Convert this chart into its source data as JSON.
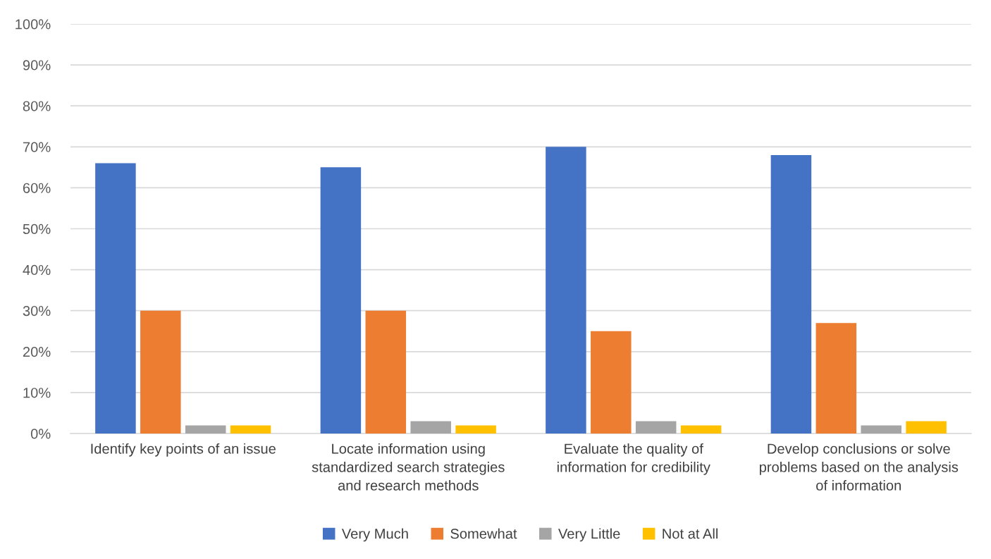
{
  "chart_data": {
    "type": "bar",
    "categories": [
      "Identify key points of an issue",
      "Locate information using standardized search strategies and research methods",
      "Evaluate the quality of information for credibility",
      "Develop conclusions or solve problems based on the analysis of information"
    ],
    "series": [
      {
        "name": "Very Much",
        "color": "#4472c4",
        "values": [
          66,
          65,
          70,
          68
        ]
      },
      {
        "name": "Somewhat",
        "color": "#ed7d31",
        "values": [
          30,
          30,
          25,
          27
        ]
      },
      {
        "name": "Very Little",
        "color": "#a5a5a5",
        "values": [
          2,
          3,
          3,
          2
        ]
      },
      {
        "name": "Not at All",
        "color": "#ffc000",
        "values": [
          2,
          2,
          2,
          3
        ]
      }
    ],
    "ylim": [
      0,
      100
    ],
    "yticks": [
      {
        "value": 0,
        "label": "0%"
      },
      {
        "value": 10,
        "label": "10%"
      },
      {
        "value": 20,
        "label": "20%"
      },
      {
        "value": 30,
        "label": "30%"
      },
      {
        "value": 40,
        "label": "40%"
      },
      {
        "value": 50,
        "label": "50%"
      },
      {
        "value": 60,
        "label": "60%"
      },
      {
        "value": 70,
        "label": "70%"
      },
      {
        "value": 80,
        "label": "80%"
      },
      {
        "value": 90,
        "label": "90%"
      },
      {
        "value": 100,
        "label": "100%"
      }
    ],
    "grid": "y",
    "legend": "bottom"
  }
}
